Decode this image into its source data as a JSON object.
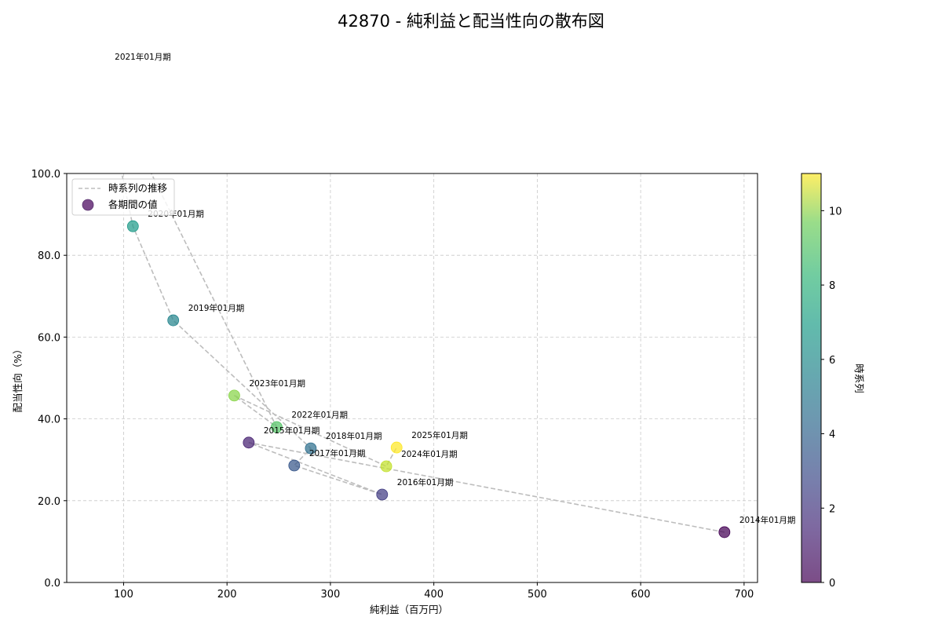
{
  "chart_data": {
    "type": "scatter",
    "title": "42870 - 純利益と配当性向の散布図",
    "xlabel": "純利益（百万円）",
    "ylabel": "配当性向（%）",
    "xlim": [
      45,
      713
    ],
    "ylim": [
      0,
      100
    ],
    "xticks": [
      100,
      200,
      300,
      400,
      500,
      600,
      700
    ],
    "yticks": [
      0,
      20,
      40,
      60,
      80,
      100
    ],
    "ytick_format": "0.0",
    "grid": true,
    "legend": {
      "position": "upper left",
      "entries": [
        {
          "label": "時系列の推移",
          "type": "dashed-line",
          "color": "#bdbdbd"
        },
        {
          "label": "各期間の値",
          "type": "marker",
          "color": "#7b4a8a"
        }
      ]
    },
    "colorbar": {
      "label": "時系列",
      "min": 0,
      "max": 11,
      "ticks": [
        0,
        2,
        4,
        6,
        8,
        10
      ],
      "colormap": "viridis"
    },
    "points": [
      {
        "label": "2014年01月期",
        "x": 681,
        "y": 12.3,
        "t": 0
      },
      {
        "label": "2015年01月期",
        "x": 221,
        "y": 34.2,
        "t": 1
      },
      {
        "label": "2016年01月期",
        "x": 350,
        "y": 21.5,
        "t": 2
      },
      {
        "label": "2017年01月期",
        "x": 265,
        "y": 28.6,
        "t": 3
      },
      {
        "label": "2018年01月期",
        "x": 281,
        "y": 32.8,
        "t": 4
      },
      {
        "label": "2019年01月期",
        "x": 148,
        "y": 64.1,
        "t": 5
      },
      {
        "label": "2020年01月期",
        "x": 109,
        "y": 87.1,
        "t": 6
      },
      {
        "label": "2021年01月期",
        "x": 77,
        "y": 125.5,
        "t": 7
      },
      {
        "label": "2022年01月期",
        "x": 248,
        "y": 38.0,
        "t": 8
      },
      {
        "label": "2023年01月期",
        "x": 207,
        "y": 45.7,
        "t": 9
      },
      {
        "label": "2024年01月期",
        "x": 354,
        "y": 28.4,
        "t": 10
      },
      {
        "label": "2025年01月期",
        "x": 364,
        "y": 33.0,
        "t": 11
      }
    ]
  }
}
